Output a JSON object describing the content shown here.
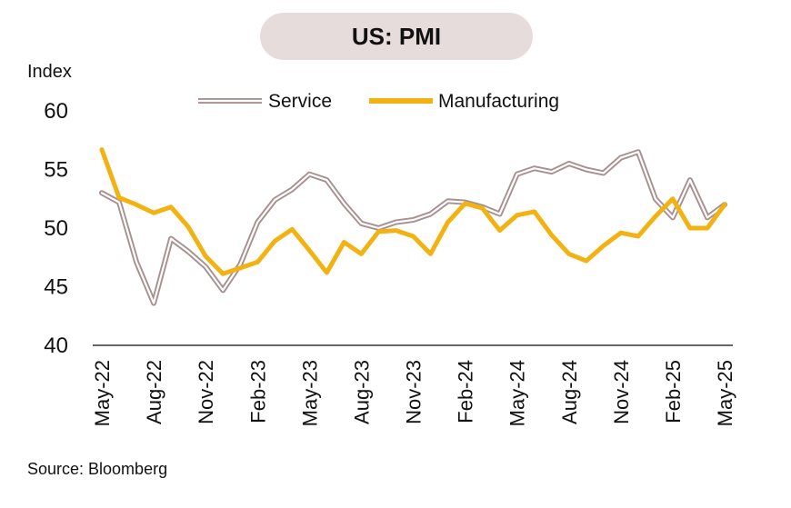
{
  "chart_data": {
    "type": "line",
    "title": "US: PMI",
    "ylabel": "Index",
    "ylim": [
      40,
      60
    ],
    "yticks": [
      40,
      45,
      50,
      55,
      60
    ],
    "x_tick_labels": [
      "May-22",
      "Aug-22",
      "Nov-22",
      "Feb-23",
      "May-23",
      "Aug-23",
      "Nov-23",
      "Feb-24",
      "May-24",
      "Aug-24",
      "Nov-24",
      "Feb-25",
      "May-25"
    ],
    "x": [
      "May-22",
      "Jun-22",
      "Jul-22",
      "Aug-22",
      "Sep-22",
      "Oct-22",
      "Nov-22",
      "Dec-22",
      "Jan-23",
      "Feb-23",
      "Mar-23",
      "Apr-23",
      "May-23",
      "Jun-23",
      "Jul-23",
      "Aug-23",
      "Sep-23",
      "Oct-23",
      "Nov-23",
      "Dec-23",
      "Jan-24",
      "Feb-24",
      "Mar-24",
      "Apr-24",
      "May-24",
      "Jun-24",
      "Jul-24",
      "Aug-24",
      "Sep-24",
      "Oct-24",
      "Nov-24",
      "Dec-24",
      "Jan-25",
      "Feb-25",
      "Mar-25",
      "Apr-25",
      "May-25"
    ],
    "series": [
      {
        "name": "Service",
        "color": "#a89090",
        "style": "double-line",
        "values": [
          53.0,
          52.2,
          47.1,
          43.6,
          49.1,
          48.0,
          46.7,
          44.7,
          46.9,
          50.5,
          52.4,
          53.3,
          54.6,
          54.1,
          52.1,
          50.4,
          50.0,
          50.5,
          50.7,
          51.2,
          52.3,
          52.2,
          51.8,
          51.2,
          54.6,
          55.1,
          54.8,
          55.5,
          55.0,
          54.7,
          56.0,
          56.5,
          52.5,
          50.9,
          54.1,
          50.9,
          52.0
        ]
      },
      {
        "name": "Manufacturing",
        "color": "#f2b211",
        "style": "solid",
        "values": [
          56.7,
          52.6,
          52.0,
          51.3,
          51.8,
          50.1,
          47.6,
          46.1,
          46.6,
          47.1,
          48.9,
          49.9,
          48.1,
          46.2,
          48.8,
          47.8,
          49.7,
          49.8,
          49.3,
          47.8,
          50.5,
          52.1,
          51.7,
          49.8,
          51.1,
          51.4,
          49.4,
          47.8,
          47.2,
          48.5,
          49.6,
          49.3,
          51.0,
          52.5,
          50.0,
          50.0,
          52.0
        ]
      }
    ],
    "legend": "top"
  },
  "source": "Source: Bloomberg"
}
